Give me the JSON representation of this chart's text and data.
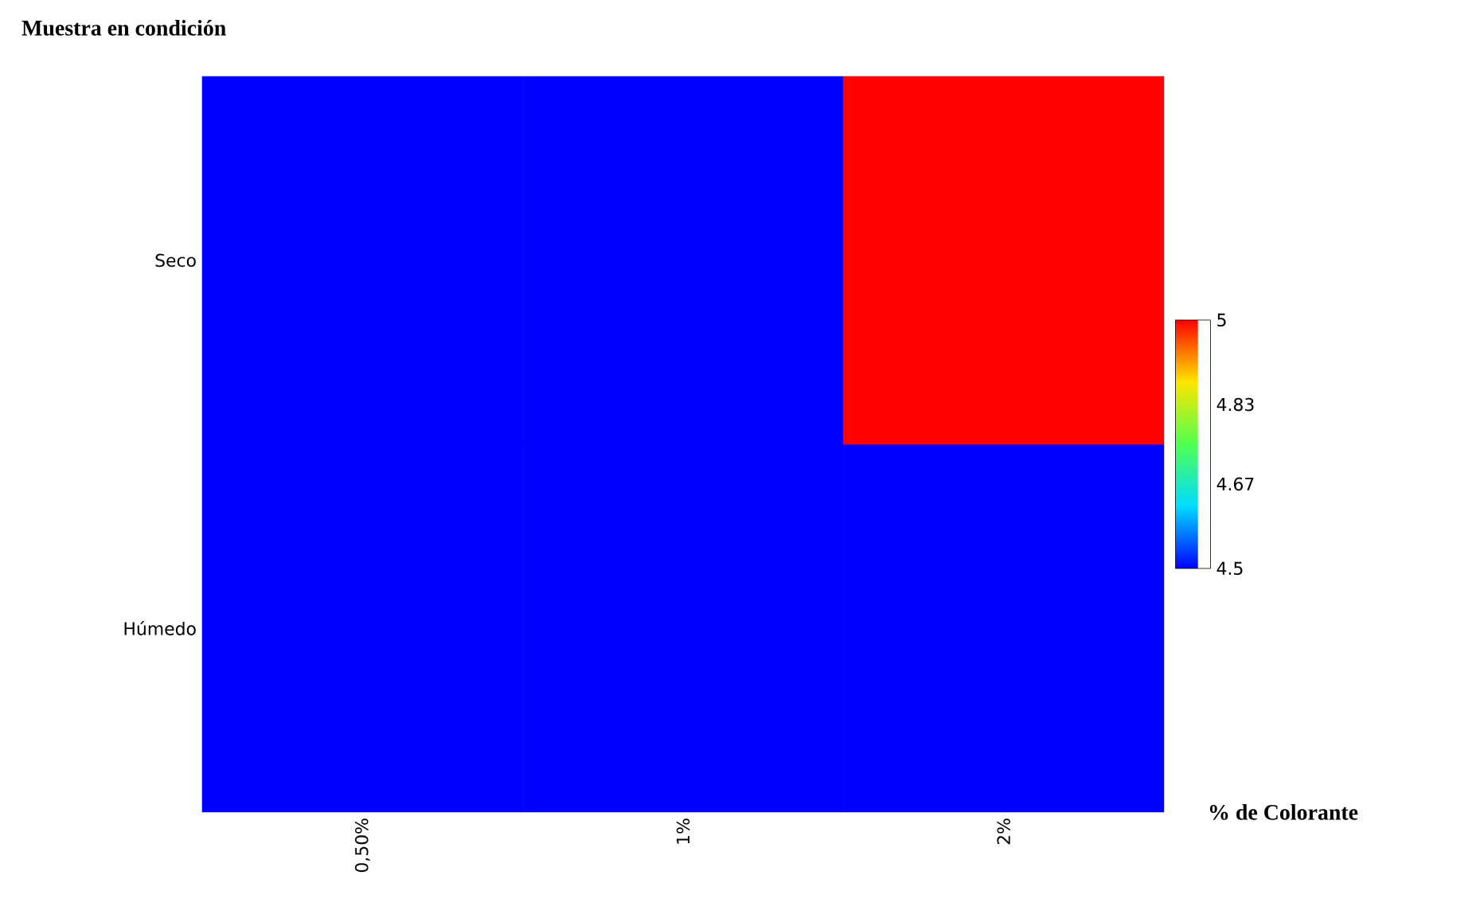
{
  "chart_data": {
    "type": "heatmap",
    "xlabel": "% de Colorante",
    "ylabel": "Muestra en condición",
    "categories": [
      "0,50%",
      "1%",
      "2%"
    ],
    "y_categories": [
      "Seco",
      "Húmedo"
    ],
    "cells": [
      [
        4.5,
        4.5,
        5
      ],
      [
        4.5,
        4.5,
        4.5
      ]
    ],
    "clim": [
      4.5,
      5
    ],
    "cticks": [
      4.5,
      4.67,
      4.83,
      5
    ]
  }
}
